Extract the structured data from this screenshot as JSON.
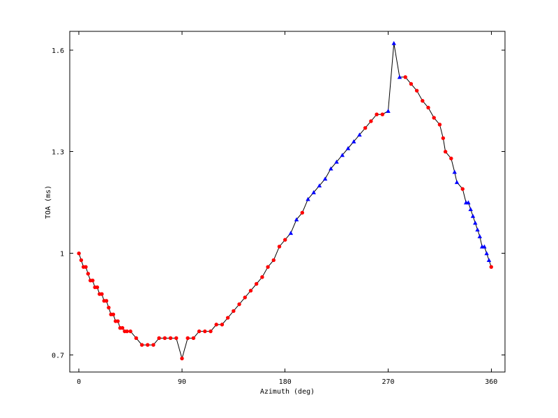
{
  "chart_data": {
    "type": "line",
    "title": "",
    "xlabel": "Azimuth (deg)",
    "ylabel": "TOA (ms)",
    "xlim": [
      -8,
      372
    ],
    "ylim": [
      0.65,
      1.655
    ],
    "xticks": [
      0,
      90,
      180,
      270,
      360
    ],
    "yticks": [
      0.7,
      1.0,
      1.3,
      1.6
    ],
    "xtick_labels": [
      "0",
      "90",
      "180",
      "270",
      "360"
    ],
    "ytick_labels": [
      "0.7",
      "1",
      "1.3",
      "1.6"
    ],
    "grid": false,
    "legend": "none",
    "line_color": "#000000",
    "marker_colors": {
      "red": "#ff0000",
      "blue": "#0000ff"
    },
    "x": [
      0,
      2,
      4,
      6,
      8,
      10,
      12,
      14,
      16,
      18,
      20,
      22,
      24,
      26,
      28,
      30,
      32,
      34,
      36,
      38,
      40,
      42,
      45,
      50,
      55,
      60,
      65,
      70,
      75,
      80,
      85,
      90,
      95,
      100,
      105,
      110,
      115,
      120,
      125,
      130,
      135,
      140,
      145,
      150,
      155,
      160,
      165,
      170,
      175,
      180,
      185,
      190,
      195,
      200,
      205,
      210,
      215,
      220,
      225,
      230,
      235,
      240,
      245,
      250,
      255,
      260,
      265,
      270,
      275,
      280,
      285,
      290,
      295,
      300,
      305,
      310,
      315,
      318,
      320,
      325,
      328,
      330,
      335,
      338,
      340,
      342,
      344,
      346,
      348,
      350,
      352,
      354,
      356,
      358,
      360
    ],
    "y": [
      1.0,
      0.98,
      0.96,
      0.96,
      0.94,
      0.92,
      0.92,
      0.9,
      0.9,
      0.88,
      0.88,
      0.86,
      0.86,
      0.84,
      0.82,
      0.82,
      0.8,
      0.8,
      0.78,
      0.78,
      0.77,
      0.77,
      0.77,
      0.75,
      0.73,
      0.73,
      0.73,
      0.75,
      0.75,
      0.75,
      0.75,
      0.69,
      0.75,
      0.75,
      0.77,
      0.77,
      0.77,
      0.79,
      0.79,
      0.81,
      0.83,
      0.85,
      0.87,
      0.89,
      0.91,
      0.93,
      0.96,
      0.98,
      1.02,
      1.04,
      1.06,
      1.1,
      1.12,
      1.16,
      1.18,
      1.2,
      1.22,
      1.25,
      1.27,
      1.29,
      1.31,
      1.33,
      1.35,
      1.37,
      1.39,
      1.41,
      1.41,
      1.42,
      1.62,
      1.52,
      1.52,
      1.5,
      1.48,
      1.45,
      1.43,
      1.4,
      1.38,
      1.34,
      1.3,
      1.28,
      1.24,
      1.21,
      1.19,
      1.15,
      1.15,
      1.13,
      1.11,
      1.09,
      1.07,
      1.05,
      1.02,
      1.02,
      1.0,
      0.98,
      0.96
    ],
    "marker_series": [
      "red",
      "red",
      "red",
      "red",
      "red",
      "red",
      "red",
      "red",
      "red",
      "red",
      "red",
      "red",
      "red",
      "red",
      "red",
      "red",
      "red",
      "red",
      "red",
      "red",
      "red",
      "red",
      "red",
      "red",
      "red",
      "red",
      "red",
      "red",
      "red",
      "red",
      "red",
      "red",
      "red",
      "red",
      "red",
      "red",
      "red",
      "red",
      "red",
      "red",
      "red",
      "red",
      "red",
      "red",
      "red",
      "red",
      "red",
      "red",
      "red",
      "red",
      "blue",
      "blue",
      "red",
      "blue",
      "blue",
      "blue",
      "blue",
      "blue",
      "blue",
      "blue",
      "blue",
      "blue",
      "blue",
      "red",
      "red",
      "red",
      "red",
      "blue",
      "blue",
      "blue",
      "red",
      "red",
      "red",
      "red",
      "red",
      "red",
      "red",
      "red",
      "red",
      "red",
      "blue",
      "blue",
      "red",
      "blue",
      "blue",
      "blue",
      "blue",
      "blue",
      "blue",
      "blue",
      "blue",
      "blue",
      "blue",
      "blue",
      "red"
    ]
  }
}
